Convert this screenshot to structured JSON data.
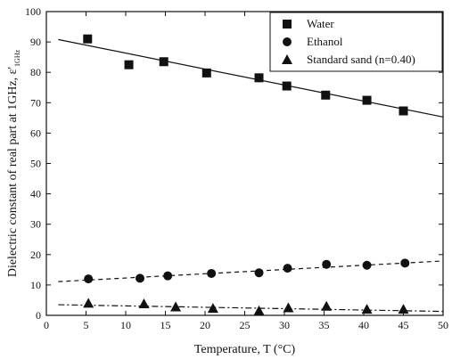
{
  "chart_data": {
    "type": "scatter",
    "title": "",
    "xlabel": "Temperature, T (°C)",
    "ylabel": "Dielectric constant of real part at 1GHz,  ε'",
    "ylabel_subscript": "1GHz",
    "xlim": [
      0,
      50
    ],
    "ylim": [
      0,
      100
    ],
    "x_ticks": [
      0,
      5,
      10,
      15,
      20,
      25,
      30,
      35,
      40,
      45,
      50
    ],
    "y_ticks": [
      0,
      10,
      20,
      30,
      40,
      50,
      60,
      70,
      80,
      90,
      100
    ],
    "grid": false,
    "legend_position": "top-right",
    "series": [
      {
        "name": "Water",
        "marker": "square",
        "x": [
          5.2,
          10.4,
          14.8,
          20.2,
          26.8,
          30.3,
          35.2,
          40.4,
          45.0
        ],
        "y": [
          91.0,
          82.5,
          83.5,
          79.8,
          78.2,
          75.5,
          72.5,
          70.8,
          67.3
        ],
        "fit": {
          "style": "solid",
          "x": [
            1.5,
            50
          ],
          "y": [
            90.8,
            65.3
          ]
        }
      },
      {
        "name": "Ethanol",
        "marker": "circle",
        "x": [
          5.3,
          11.8,
          15.3,
          20.8,
          26.8,
          30.4,
          35.3,
          40.4,
          45.2
        ],
        "y": [
          12.0,
          12.2,
          13.0,
          13.8,
          14.0,
          15.5,
          16.8,
          16.5,
          17.2
        ],
        "fit": {
          "style": "dashed",
          "x": [
            1.5,
            50
          ],
          "y": [
            11.1,
            17.9
          ]
        }
      },
      {
        "name": "Standard sand (n=0.40)",
        "marker": "triangle",
        "x": [
          5.3,
          12.3,
          16.3,
          21.0,
          26.8,
          30.5,
          35.3,
          40.4,
          45.0
        ],
        "y": [
          4.0,
          3.8,
          2.8,
          2.3,
          1.5,
          2.5,
          3.0,
          2.0,
          2.0
        ],
        "fit": {
          "style": "dash-dot",
          "x": [
            1.5,
            50
          ],
          "y": [
            3.5,
            1.3
          ]
        }
      }
    ]
  }
}
